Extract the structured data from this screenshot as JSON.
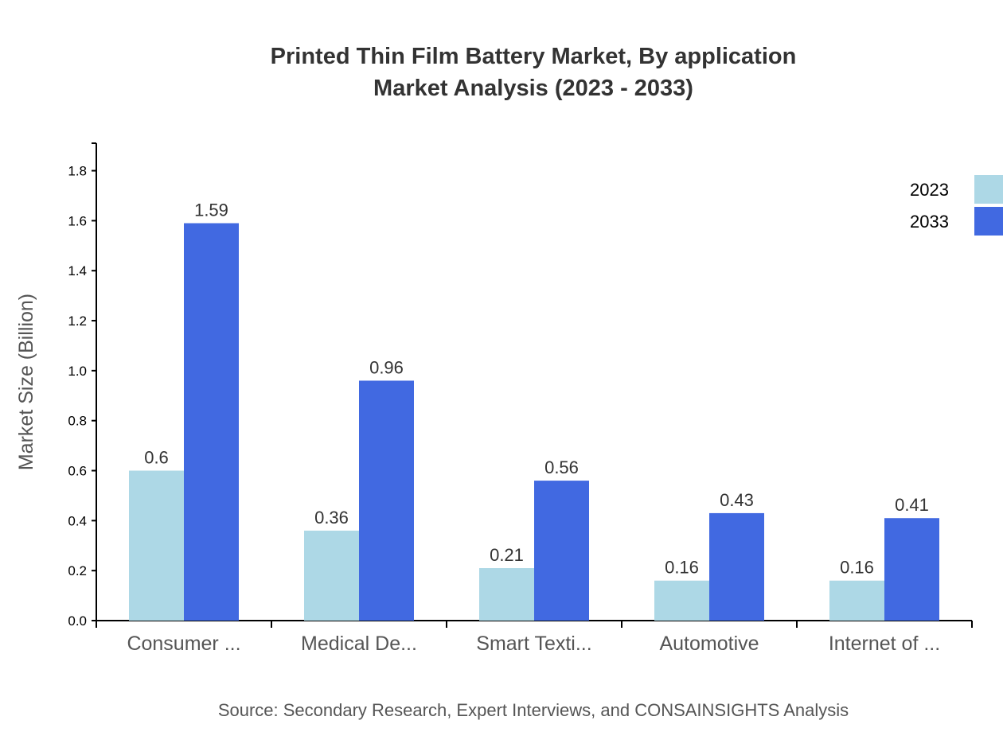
{
  "chart_data": {
    "type": "bar",
    "title": "Printed Thin Film Battery Market, By application",
    "subtitle": "Market Analysis (2023 - 2033)",
    "xlabel": "",
    "ylabel": "Market Size (Billion)",
    "categories": [
      "Consumer ...",
      "Medical De...",
      "Smart Texti...",
      "Automotive",
      "Internet of ..."
    ],
    "series": [
      {
        "name": "2023",
        "color": "#add8e6",
        "values": [
          0.6,
          0.36,
          0.21,
          0.16,
          0.16
        ]
      },
      {
        "name": "2033",
        "color": "#4169e1",
        "values": [
          1.59,
          0.96,
          0.56,
          0.43,
          0.41
        ]
      }
    ],
    "ylim": [
      0,
      1.91
    ],
    "yticks": [
      "0.0",
      "0.2",
      "0.4",
      "0.6",
      "0.8",
      "1.0",
      "1.2",
      "1.4",
      "1.6",
      "1.8"
    ],
    "grid": false,
    "legend_position": "top-right",
    "source": "Source: Secondary Research, Expert Interviews, and CONSAINSIGHTS Analysis"
  }
}
